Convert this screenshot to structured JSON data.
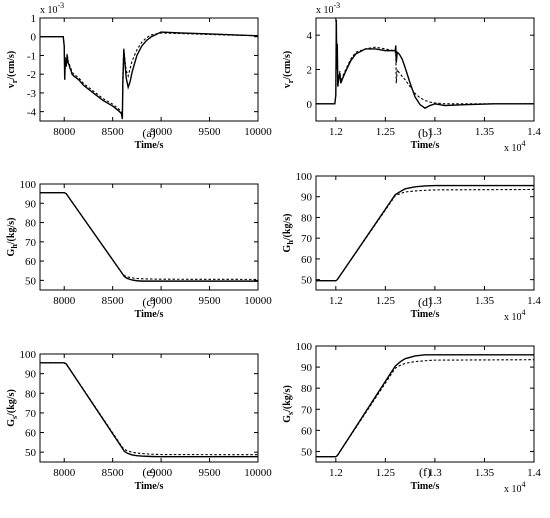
{
  "chart_data": [
    {
      "type": "line",
      "panel_label": "(a)",
      "xlabel": "Time/s",
      "ylabel_main": "v",
      "ylabel_sub": "r",
      "ylabel_unit": "/(cm/s)",
      "y_multiplier": "x 10",
      "y_multiplier_exp": "-3",
      "xlim": [
        7750,
        10000
      ],
      "ylim": [
        -4.5,
        1
      ],
      "xticks": [
        8000,
        8500,
        9000,
        9500,
        10000
      ],
      "xtick_labels": [
        "8000",
        "8500",
        "9000",
        "9500",
        "10000"
      ],
      "yticks": [
        -4,
        -3,
        -2,
        -1,
        0,
        1
      ],
      "ytick_labels": [
        "-4",
        "-3",
        "-2",
        "-1",
        "0",
        "1"
      ],
      "series": [
        {
          "style": "solid",
          "x": [
            7750,
            7990,
            8000,
            8005,
            8012,
            8020,
            8030,
            8040,
            8050,
            8060,
            8070,
            8080,
            8100,
            8150,
            8200,
            8300,
            8400,
            8500,
            8560,
            8590,
            8600,
            8605,
            8615,
            8625,
            8640,
            8660,
            8680,
            8700,
            8750,
            8800,
            8850,
            8900,
            9000,
            9200,
            9500,
            10000
          ],
          "y": [
            0,
            0,
            -0.5,
            -2.3,
            -1.2,
            -1.6,
            -1.0,
            -1.4,
            -1.5,
            -1.7,
            -1.8,
            -2.0,
            -2.1,
            -2.3,
            -2.6,
            -3.0,
            -3.4,
            -3.7,
            -3.95,
            -4.1,
            -4.4,
            -2.5,
            -0.7,
            -1.3,
            -2.2,
            -2.7,
            -2.4,
            -1.9,
            -1.0,
            -0.5,
            -0.2,
            0,
            0.25,
            0.2,
            0.15,
            0.05
          ]
        },
        {
          "style": "dashed",
          "x": [
            7750,
            7990,
            8000,
            8005,
            8012,
            8020,
            8030,
            8040,
            8050,
            8060,
            8070,
            8080,
            8100,
            8150,
            8200,
            8300,
            8400,
            8500,
            8560,
            8590,
            8600,
            8605,
            8615,
            8625,
            8640,
            8660,
            8680,
            8700,
            8750,
            8800,
            8850,
            8900,
            9000,
            9200,
            9500,
            10000
          ],
          "y": [
            0,
            0,
            -0.5,
            -2.0,
            -1.1,
            -1.4,
            -0.9,
            -1.3,
            -1.4,
            -1.6,
            -1.7,
            -1.9,
            -2.0,
            -2.2,
            -2.5,
            -2.9,
            -3.3,
            -3.6,
            -3.85,
            -4.0,
            -4.2,
            -2.0,
            -0.6,
            -1.2,
            -1.8,
            -2.1,
            -1.7,
            -1.3,
            -0.7,
            -0.3,
            -0.05,
            0.1,
            0.2,
            0.17,
            0.12,
            0.05
          ]
        }
      ]
    },
    {
      "type": "line",
      "panel_label": "(b)",
      "xlabel": "Time/s",
      "ylabel_main": "v",
      "ylabel_sub": "r",
      "ylabel_unit": "/(cm/s)",
      "y_multiplier": "x 10",
      "y_multiplier_exp": "-3",
      "x_multiplier": "x 10",
      "x_multiplier_exp": "4",
      "xlim": [
        1.18,
        1.4
      ],
      "ylim": [
        -1,
        5
      ],
      "xticks": [
        1.2,
        1.25,
        1.3,
        1.35,
        1.4
      ],
      "xtick_labels": [
        "1.2",
        "1.25",
        "1.3",
        "1.35",
        "1.4"
      ],
      "yticks": [
        0,
        2,
        4
      ],
      "ytick_labels": [
        "0",
        "2",
        "4"
      ],
      "series": [
        {
          "style": "solid",
          "x": [
            1.18,
            1.199,
            1.2,
            1.2005,
            1.201,
            1.2015,
            1.202,
            1.203,
            1.204,
            1.205,
            1.207,
            1.21,
            1.215,
            1.22,
            1.23,
            1.24,
            1.25,
            1.258,
            1.26,
            1.2605,
            1.261,
            1.262,
            1.264,
            1.267,
            1.27,
            1.275,
            1.28,
            1.285,
            1.29,
            1.295,
            1.3,
            1.31,
            1.33,
            1.36,
            1.4
          ],
          "y": [
            0,
            0,
            0.5,
            4.9,
            2.0,
            3.5,
            1.0,
            1.5,
            1.8,
            1.2,
            1.5,
            1.9,
            2.5,
            2.9,
            3.2,
            3.2,
            3.1,
            3.1,
            3.1,
            3.4,
            2.4,
            3.0,
            2.9,
            2.6,
            2.1,
            1.2,
            0.4,
            -0.05,
            -0.25,
            -0.1,
            0,
            -0.1,
            -0.05,
            0,
            0
          ]
        },
        {
          "style": "dashed",
          "x": [
            1.18,
            1.199,
            1.2,
            1.2005,
            1.201,
            1.2015,
            1.202,
            1.203,
            1.204,
            1.205,
            1.207,
            1.21,
            1.215,
            1.22,
            1.23,
            1.24,
            1.25,
            1.258,
            1.26,
            1.2605,
            1.261,
            1.262,
            1.264,
            1.267,
            1.27,
            1.275,
            1.28,
            1.285,
            1.29,
            1.295,
            1.3,
            1.31,
            1.33,
            1.36,
            1.4
          ],
          "y": [
            0,
            0,
            0.5,
            4.7,
            2.2,
            3.3,
            1.1,
            1.5,
            1.9,
            1.3,
            1.6,
            2.0,
            2.6,
            3.0,
            3.2,
            3.3,
            3.2,
            3.1,
            3.0,
            3.2,
            1.2,
            2.0,
            1.8,
            1.6,
            1.4,
            1.0,
            0.6,
            0.35,
            0.2,
            0.1,
            0.05,
            0,
            0,
            0,
            0
          ]
        }
      ]
    },
    {
      "type": "line",
      "panel_label": "(c)",
      "xlabel": "Time/s",
      "ylabel_main": "G",
      "ylabel_sub": "h",
      "ylabel_unit": "/(kg/s)",
      "xlim": [
        7750,
        10000
      ],
      "ylim": [
        45,
        100
      ],
      "xticks": [
        8000,
        8500,
        9000,
        9500,
        10000
      ],
      "xtick_labels": [
        "8000",
        "8500",
        "9000",
        "9500",
        "10000"
      ],
      "yticks": [
        50,
        60,
        70,
        80,
        90,
        100
      ],
      "ytick_labels": [
        "50",
        "60",
        "70",
        "80",
        "90",
        "100"
      ],
      "series": [
        {
          "style": "solid",
          "x": [
            7750,
            8000,
            8020,
            8600,
            8620,
            8650,
            8700,
            8750,
            8800,
            8900,
            9000,
            10000
          ],
          "y": [
            95.5,
            95.5,
            95,
            53.5,
            52,
            51,
            50.2,
            49.8,
            49.6,
            49.6,
            49.6,
            49.6
          ]
        },
        {
          "style": "dashed",
          "x": [
            7750,
            8000,
            8020,
            8600,
            8620,
            8650,
            8700,
            8750,
            8800,
            8900,
            9000,
            10000
          ],
          "y": [
            95.5,
            95.5,
            95,
            53.5,
            52.5,
            51.8,
            51.3,
            51,
            50.8,
            50.7,
            50.6,
            50.5
          ]
        }
      ]
    },
    {
      "type": "line",
      "panel_label": "(d)",
      "xlabel": "Time/s",
      "ylabel_main": "G",
      "ylabel_sub": "h",
      "ylabel_unit": "/(kg/s)",
      "x_multiplier": "x 10",
      "x_multiplier_exp": "4",
      "xlim": [
        1.18,
        1.4
      ],
      "ylim": [
        45,
        100
      ],
      "xticks": [
        1.2,
        1.25,
        1.3,
        1.35,
        1.4
      ],
      "xtick_labels": [
        "1.2",
        "1.25",
        "1.3",
        "1.35",
        "1.4"
      ],
      "yticks": [
        50,
        60,
        70,
        80,
        90,
        100
      ],
      "ytick_labels": [
        "50",
        "60",
        "70",
        "80",
        "90",
        "100"
      ],
      "series": [
        {
          "style": "solid",
          "x": [
            1.18,
            1.2,
            1.2015,
            1.26,
            1.265,
            1.27,
            1.28,
            1.29,
            1.3,
            1.4
          ],
          "y": [
            49.5,
            49.5,
            50,
            91,
            92.5,
            93.8,
            94.8,
            95.2,
            95.4,
            95.4
          ]
        },
        {
          "style": "dashed",
          "x": [
            1.18,
            1.2,
            1.2015,
            1.26,
            1.265,
            1.27,
            1.28,
            1.29,
            1.3,
            1.4
          ],
          "y": [
            49.5,
            49.5,
            50,
            90.5,
            91.5,
            92.3,
            92.8,
            93.1,
            93.3,
            93.5
          ]
        }
      ]
    },
    {
      "type": "line",
      "panel_label": "(e)",
      "xlabel": "Time/s",
      "ylabel_main": "G",
      "ylabel_sub": "s",
      "ylabel_unit": "/(kg/s)",
      "xlim": [
        7750,
        10000
      ],
      "ylim": [
        45,
        100
      ],
      "xticks": [
        8000,
        8500,
        9000,
        9500,
        10000
      ],
      "xtick_labels": [
        "8000",
        "8500",
        "9000",
        "9500",
        "10000"
      ],
      "yticks": [
        50,
        60,
        70,
        80,
        90,
        100
      ],
      "ytick_labels": [
        "50",
        "60",
        "70",
        "80",
        "90",
        "100"
      ],
      "series": [
        {
          "style": "solid",
          "x": [
            7750,
            8000,
            8020,
            8600,
            8620,
            8650,
            8700,
            8750,
            8800,
            8900,
            9000,
            10000
          ],
          "y": [
            95.5,
            95.5,
            95,
            52,
            50.5,
            49.5,
            48.6,
            48.2,
            48,
            47.8,
            47.7,
            47.7
          ]
        },
        {
          "style": "dashed",
          "x": [
            7750,
            8000,
            8020,
            8600,
            8620,
            8650,
            8700,
            8750,
            8800,
            8900,
            9000,
            10000
          ],
          "y": [
            95.5,
            95.5,
            95,
            52.5,
            51.5,
            50.7,
            50,
            49.6,
            49.3,
            49,
            48.8,
            48.7
          ]
        }
      ]
    },
    {
      "type": "line",
      "panel_label": "(f)",
      "xlabel": "Time/s",
      "ylabel_main": "G",
      "ylabel_sub": "s",
      "ylabel_unit": "/(kg/s)",
      "x_multiplier": "x 10",
      "x_multiplier_exp": "4",
      "xlim": [
        1.18,
        1.4
      ],
      "ylim": [
        45,
        100
      ],
      "xticks": [
        1.2,
        1.25,
        1.3,
        1.35,
        1.4
      ],
      "xtick_labels": [
        "1.2",
        "1.25",
        "1.3",
        "1.35",
        "1.4"
      ],
      "yticks": [
        50,
        60,
        70,
        80,
        90,
        100
      ],
      "ytick_labels": [
        "50",
        "60",
        "70",
        "80",
        "90",
        "100"
      ],
      "series": [
        {
          "style": "solid",
          "x": [
            1.18,
            1.2,
            1.2015,
            1.26,
            1.265,
            1.27,
            1.28,
            1.29,
            1.3,
            1.4
          ],
          "y": [
            47.5,
            47.5,
            48,
            90.5,
            92.5,
            94,
            95.3,
            95.8,
            95.8,
            95.8
          ]
        },
        {
          "style": "dashed",
          "x": [
            1.18,
            1.2,
            1.2015,
            1.26,
            1.265,
            1.27,
            1.28,
            1.29,
            1.3,
            1.4
          ],
          "y": [
            47.5,
            47.5,
            48,
            89.5,
            90.8,
            91.8,
            92.6,
            93,
            93.3,
            93.5
          ]
        }
      ]
    }
  ]
}
